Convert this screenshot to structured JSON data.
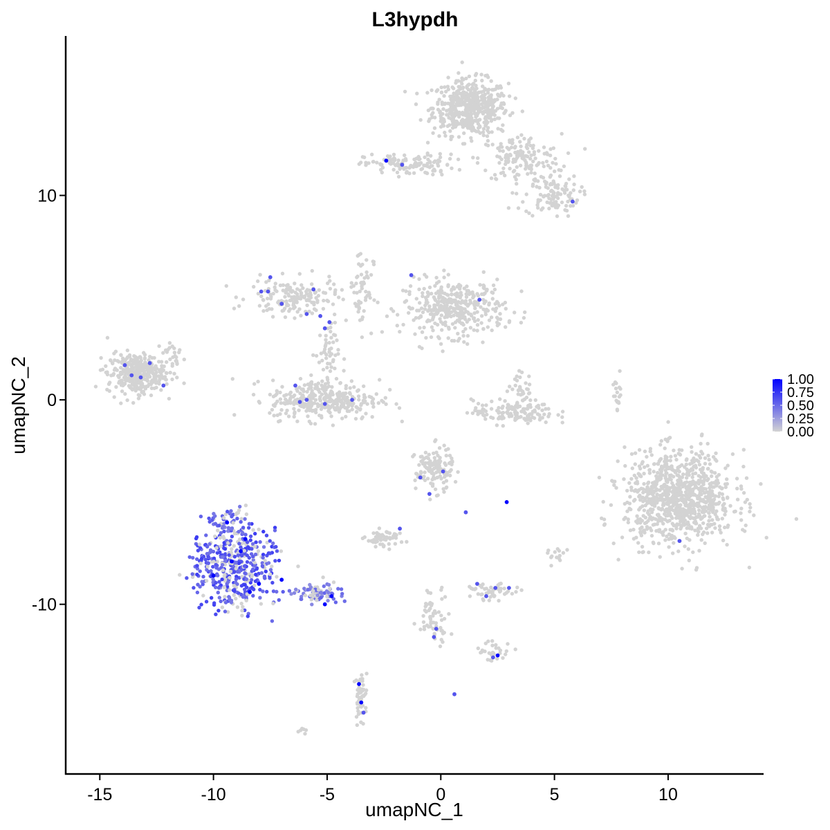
{
  "chart_data": {
    "type": "scatter",
    "title": "L3hypdh",
    "xlabel": "umapNC_1",
    "ylabel": "umapNC_2",
    "xlim": [
      -16.5,
      14.2
    ],
    "ylim": [
      -18.3,
      17.8
    ],
    "x_ticks": [
      -15,
      -10,
      -5,
      0,
      5,
      10
    ],
    "x_tick_labels": [
      "-15",
      "-10",
      "-5",
      "0",
      "5",
      "10"
    ],
    "y_ticks": [
      -10,
      0,
      10
    ],
    "y_tick_labels": [
      "-10",
      "0",
      "10"
    ],
    "grid": false,
    "colors": {
      "low": "#d3d3d3",
      "high": "#0000ff"
    },
    "color_scale": {
      "min": 0,
      "max": 1,
      "ticks": [
        1.0,
        0.75,
        0.5,
        0.25,
        0.0
      ],
      "tick_labels": [
        "1.00",
        "0.75",
        "0.50",
        "0.25",
        "0.00"
      ]
    },
    "legend_position": "right",
    "clusters": [
      {
        "cx": 1.3,
        "cy": 14.3,
        "sx": 1.1,
        "sy": 0.9,
        "n": 520
      },
      {
        "cx": 3.5,
        "cy": 11.8,
        "sx": 1.2,
        "sy": 0.8,
        "n": 150
      },
      {
        "cx": 4.9,
        "cy": 10.0,
        "sx": 0.8,
        "sy": 0.7,
        "n": 110
      },
      {
        "cx": -1.4,
        "cy": 11.5,
        "sx": 1.3,
        "sy": 0.35,
        "n": 120
      },
      {
        "cx": 0.6,
        "cy": 4.5,
        "sx": 1.5,
        "sy": 0.9,
        "n": 380
      },
      {
        "cx": -6.5,
        "cy": 5.0,
        "sx": 1.3,
        "sy": 0.6,
        "n": 160
      },
      {
        "cx": -3.5,
        "cy": 5.5,
        "sx": 0.35,
        "sy": 1.4,
        "n": 55
      },
      {
        "cx": -5.0,
        "cy": 2.2,
        "sx": 0.35,
        "sy": 1.0,
        "n": 50
      },
      {
        "cx": -5.1,
        "cy": 0.0,
        "sx": 1.6,
        "sy": 0.65,
        "n": 330
      },
      {
        "cx": -13.4,
        "cy": 1.3,
        "sx": 0.85,
        "sy": 0.65,
        "n": 340
      },
      {
        "cx": -11.8,
        "cy": 2.2,
        "sx": 0.4,
        "sy": 0.5,
        "n": 25
      },
      {
        "cx": 3.2,
        "cy": -0.6,
        "sx": 1.2,
        "sy": 0.4,
        "n": 140
      },
      {
        "cx": 3.5,
        "cy": 0.6,
        "sx": 0.35,
        "sy": 0.5,
        "n": 30
      },
      {
        "cx": 7.8,
        "cy": 0.4,
        "sx": 0.15,
        "sy": 0.6,
        "n": 18
      },
      {
        "cx": 10.5,
        "cy": -4.8,
        "sx": 1.6,
        "sy": 1.5,
        "n": 950
      },
      {
        "cx": -0.3,
        "cy": -3.4,
        "sx": 0.55,
        "sy": 0.7,
        "n": 130
      },
      {
        "cx": -2.5,
        "cy": -6.8,
        "sx": 0.55,
        "sy": 0.28,
        "n": 55
      },
      {
        "cx": 2.3,
        "cy": -9.4,
        "sx": 0.65,
        "sy": 0.25,
        "n": 50
      },
      {
        "cx": -0.3,
        "cy": -10.5,
        "sx": 0.45,
        "sy": 0.9,
        "n": 60
      },
      {
        "cx": 2.3,
        "cy": -12.3,
        "sx": 0.55,
        "sy": 0.35,
        "n": 30
      },
      {
        "cx": -3.5,
        "cy": -14.5,
        "sx": 0.18,
        "sy": 0.8,
        "n": 50
      },
      {
        "cx": -6.0,
        "cy": -16.2,
        "sx": 0.2,
        "sy": 0.1,
        "n": 6
      },
      {
        "cx": 5.0,
        "cy": -7.6,
        "sx": 0.3,
        "sy": 0.25,
        "n": 14
      },
      {
        "cx": -9.1,
        "cy": -8.2,
        "sx": 1.2,
        "sy": 1.2,
        "n": 460,
        "expr": 0.6
      },
      {
        "cx": -5.4,
        "cy": -9.4,
        "sx": 0.9,
        "sy": 0.35,
        "n": 80,
        "expr": 0.45
      },
      {
        "cx": -9.2,
        "cy": -6.0,
        "sx": 0.6,
        "sy": 0.45,
        "n": 60,
        "expr": 0.5
      }
    ],
    "highlights": [
      {
        "x": -2.4,
        "y": 11.7,
        "v": 1.0
      },
      {
        "x": -1.7,
        "y": 11.5,
        "v": 0.6
      },
      {
        "x": 5.8,
        "y": 9.7,
        "v": 0.6
      },
      {
        "x": -1.3,
        "y": 6.1,
        "v": 0.6
      },
      {
        "x": 1.7,
        "y": 4.9,
        "v": 0.6
      },
      {
        "x": -7.5,
        "y": 6.0,
        "v": 0.6
      },
      {
        "x": -7.6,
        "y": 5.3,
        "v": 0.6
      },
      {
        "x": -7.9,
        "y": 5.3,
        "v": 0.6
      },
      {
        "x": -5.6,
        "y": 5.4,
        "v": 0.6
      },
      {
        "x": -7.0,
        "y": 4.7,
        "v": 0.6
      },
      {
        "x": -5.9,
        "y": 4.2,
        "v": 0.6
      },
      {
        "x": -5.3,
        "y": 4.1,
        "v": 0.6
      },
      {
        "x": -4.9,
        "y": 3.8,
        "v": 0.6
      },
      {
        "x": -5.1,
        "y": 3.5,
        "v": 0.6
      },
      {
        "x": -13.9,
        "y": 1.7,
        "v": 0.6
      },
      {
        "x": -13.6,
        "y": 1.2,
        "v": 0.6
      },
      {
        "x": -12.8,
        "y": 1.8,
        "v": 0.6
      },
      {
        "x": -12.2,
        "y": 0.7,
        "v": 0.6
      },
      {
        "x": -13.2,
        "y": 1.1,
        "v": 0.6
      },
      {
        "x": -6.4,
        "y": 0.7,
        "v": 0.6
      },
      {
        "x": -6.2,
        "y": -0.1,
        "v": 0.6
      },
      {
        "x": -5.9,
        "y": 0.0,
        "v": 0.6
      },
      {
        "x": -5.1,
        "y": -0.2,
        "v": 0.6
      },
      {
        "x": -3.9,
        "y": 0.0,
        "v": 0.6
      },
      {
        "x": -0.9,
        "y": -3.8,
        "v": 0.6
      },
      {
        "x": -0.5,
        "y": -4.6,
        "v": 0.6
      },
      {
        "x": 0.1,
        "y": -3.5,
        "v": 0.6
      },
      {
        "x": 1.1,
        "y": -5.5,
        "v": 0.6
      },
      {
        "x": 2.9,
        "y": -5.0,
        "v": 1.0
      },
      {
        "x": -1.8,
        "y": -6.3,
        "v": 0.6
      },
      {
        "x": 1.6,
        "y": -9.0,
        "v": 0.6
      },
      {
        "x": 2.4,
        "y": -9.2,
        "v": 0.6
      },
      {
        "x": 3.0,
        "y": -9.2,
        "v": 0.6
      },
      {
        "x": 2.0,
        "y": -9.6,
        "v": 0.6
      },
      {
        "x": -0.3,
        "y": -11.6,
        "v": 0.6
      },
      {
        "x": -0.2,
        "y": -11.2,
        "v": 0.6
      },
      {
        "x": 2.5,
        "y": -12.5,
        "v": 1.0
      },
      {
        "x": 2.3,
        "y": -12.6,
        "v": 0.6
      },
      {
        "x": 0.6,
        "y": -14.4,
        "v": 0.6
      },
      {
        "x": -3.6,
        "y": -13.9,
        "v": 1.0
      },
      {
        "x": -3.5,
        "y": -14.8,
        "v": 1.0
      },
      {
        "x": -3.4,
        "y": -15.3,
        "v": 0.6
      },
      {
        "x": 10.5,
        "y": -6.9,
        "v": 0.6
      },
      {
        "x": -9.4,
        "y": -6.0,
        "v": 1.0
      },
      {
        "x": -8.6,
        "y": -6.8,
        "v": 1.0
      },
      {
        "x": -10.0,
        "y": -8.6,
        "v": 1.0
      },
      {
        "x": -9.2,
        "y": -7.9,
        "v": 1.0
      },
      {
        "x": -8.0,
        "y": -9.0,
        "v": 1.0
      },
      {
        "x": -7.0,
        "y": -8.8,
        "v": 1.0
      },
      {
        "x": -4.8,
        "y": -9.6,
        "v": 1.0
      },
      {
        "x": -5.1,
        "y": -10.0,
        "v": 1.0
      },
      {
        "x": -8.4,
        "y": -9.4,
        "v": 1.0
      },
      {
        "x": -8.8,
        "y": -7.4,
        "v": 1.0
      }
    ]
  }
}
